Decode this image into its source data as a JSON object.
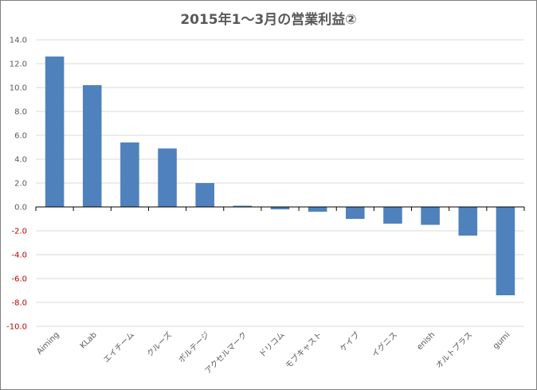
{
  "chart_data": {
    "type": "bar",
    "title": "2015年1～3月の営業利益②",
    "xlabel": "",
    "ylabel": "",
    "categories": [
      "Aiming",
      "KLab",
      "エイチーム",
      "クルーズ",
      "ボルテージ",
      "アクセルマーク",
      "ドリコム",
      "モブキャスト",
      "ケイブ",
      "イグニス",
      "enish",
      "オルトプラス",
      "gumi"
    ],
    "values": [
      12.6,
      10.2,
      5.4,
      4.9,
      2.0,
      0.1,
      -0.2,
      -0.4,
      -1.0,
      -1.4,
      -1.5,
      -2.4,
      -7.4
    ],
    "ylim": [
      -10.0,
      14.0
    ],
    "yticks": [
      "14.0",
      "12.0",
      "10.0",
      "8.0",
      "6.0",
      "4.0",
      "2.0",
      "0.0",
      "-2.0",
      "-4.0",
      "-6.0",
      "-8.0",
      "-10.0"
    ],
    "grid": true,
    "legend": "none",
    "colors": {
      "bar": "#4f81bd",
      "positive_tick": "#595959",
      "negative_tick": "#c00000",
      "grid": "#d9d9d9",
      "axis": "#000000"
    }
  }
}
